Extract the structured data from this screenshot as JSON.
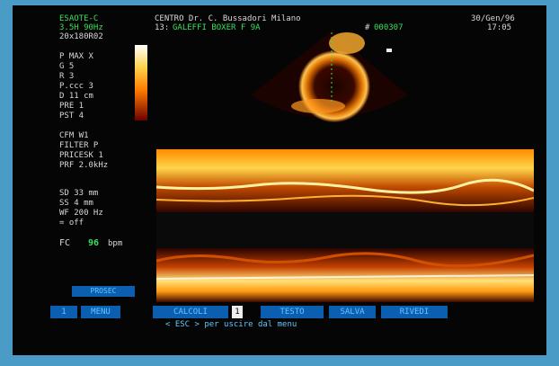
{
  "header": {
    "device": "ESAOTE-C",
    "line2": "3.5H 90Hz",
    "line3": "20x180R02",
    "center": "CENTRO  Dr. C. Bussadori Milano",
    "patient_prefix": "13:",
    "patient": "GALEFFI BOXER F 9A",
    "id_prefix": "#",
    "id": "000307",
    "date": "30/Gen/96",
    "time": "17:05"
  },
  "params_top": [
    "P MAX  X",
    "G        5",
    "R        3",
    "P.ccc   3",
    "D 11  cm",
    "PRE  1",
    "PST  4"
  ],
  "params_mid": [
    "CFM     W1",
    "FILTER  P",
    "PRICESK  1",
    "PRF  2.0kHz"
  ],
  "params_low": [
    "SD    33 mm",
    "SS     4 mm",
    "WF   200 Hz",
    "=  off"
  ],
  "fc": {
    "label": "FC",
    "value": "96",
    "unit": "bpm"
  },
  "prosec_label": "PROSEC",
  "menu": {
    "items": [
      "MENU",
      "CALCOLI",
      "TESTO",
      "SALVA",
      "RIVEDI"
    ],
    "left_marker": "1",
    "sep_marker": "1"
  },
  "hint": "< ESC >  per uscire dal menu",
  "colors": {
    "frame_border": "#4a9cc7",
    "menu_bg": "#0c5fb0",
    "menu_text": "#5fc8ff",
    "label_green": "#39e05a"
  }
}
